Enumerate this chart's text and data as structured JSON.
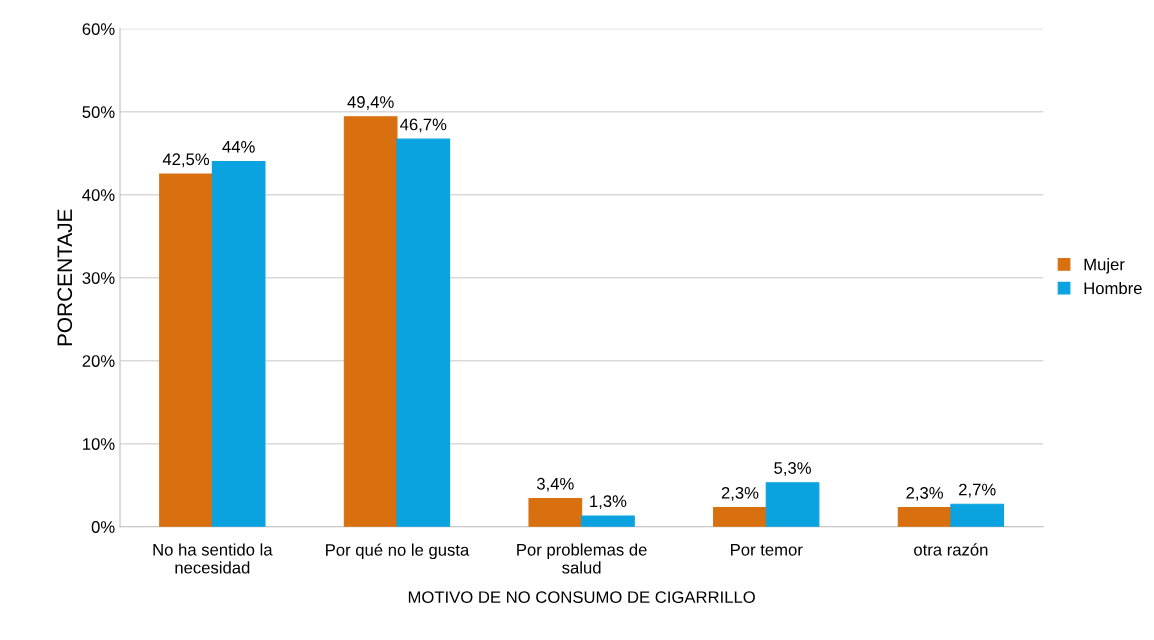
{
  "chart_data": {
    "type": "bar",
    "xlabel": "MOTIVO DE NO CONSUMO DE CIGARRILLO",
    "ylabel": "PORCENTAJE",
    "categories": [
      "No ha sentido la\nnecesidad",
      "Por qué no le gusta",
      "Por problemas de\nsalud",
      "Por temor",
      "otra razón"
    ],
    "series": [
      {
        "name": "Mujer",
        "color": "#d9700f",
        "values": [
          42.5,
          49.4,
          3.4,
          2.3,
          2.3
        ],
        "value_labels": [
          "42,5%",
          "49,4%",
          "3,4%",
          "2,3%",
          "2,3%"
        ]
      },
      {
        "name": "Hombre",
        "color": "#0aa3e0",
        "values": [
          44,
          46.7,
          1.3,
          5.3,
          2.7
        ],
        "value_labels": [
          "44%",
          "46,7%",
          "1,3%",
          "5,3%",
          "2,7%"
        ]
      }
    ],
    "ylim": [
      0,
      60
    ],
    "yticks": [
      {
        "value": 0,
        "label": "0%"
      },
      {
        "value": 10,
        "label": "10%"
      },
      {
        "value": 20,
        "label": "20%"
      },
      {
        "value": 30,
        "label": "30%"
      },
      {
        "value": 40,
        "label": "40%"
      },
      {
        "value": 50,
        "label": "50%"
      },
      {
        "value": 60,
        "label": "60%"
      }
    ],
    "grid": "y",
    "legend": "right"
  }
}
